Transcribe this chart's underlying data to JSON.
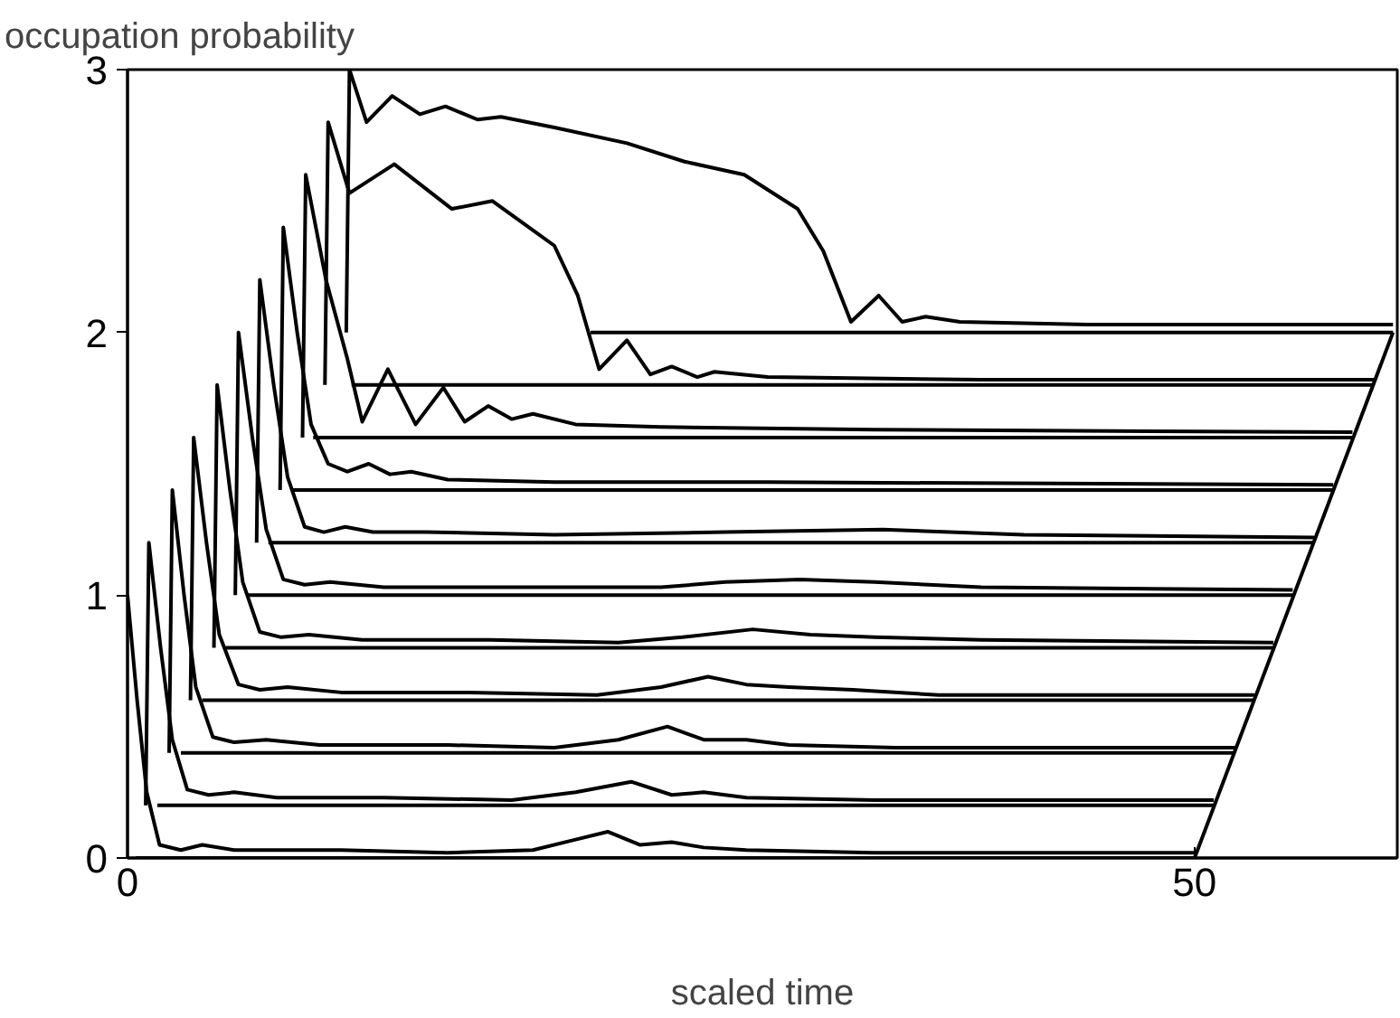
{
  "chart_data": {
    "type": "line",
    "xlabel": "scaled time",
    "ylabel": "occupation probability",
    "xlim": [
      0,
      59.5
    ],
    "ylim": [
      0,
      3
    ],
    "xticks": [
      0,
      50
    ],
    "yticks": [
      0,
      1,
      2,
      3
    ],
    "grid": false,
    "series": [
      {
        "color": "#000000",
        "x": [
          0,
          0.45,
          0.9,
          1.5,
          2.5,
          3.5,
          5,
          10,
          15,
          19,
          21,
          22.5,
          24,
          25.5,
          27,
          29,
          35,
          50
        ],
        "values": [
          1.0,
          0.6,
          0.25,
          0.05,
          0.03,
          0.05,
          0.03,
          0.03,
          0.02,
          0.03,
          0.07,
          0.1,
          0.05,
          0.06,
          0.04,
          0.03,
          0.02,
          0.02
        ]
      },
      {
        "color": "#000000",
        "x": [
          0.85,
          1.0,
          1.55,
          2.1,
          2.8,
          3.8,
          5,
          7,
          12,
          18,
          21,
          23.6,
          25.5,
          27,
          29,
          35,
          50.9
        ],
        "values": [
          0.2,
          1.2,
          0.8,
          0.45,
          0.26,
          0.24,
          0.25,
          0.23,
          0.23,
          0.22,
          0.25,
          0.29,
          0.24,
          0.25,
          0.23,
          0.22,
          0.22
        ]
      },
      {
        "color": "#000000",
        "x": [
          1.95,
          2.1,
          2.65,
          3.2,
          4.0,
          5,
          6.5,
          9,
          15,
          20,
          23,
          25.3,
          27,
          29,
          31,
          36,
          51.9
        ],
        "values": [
          0.4,
          1.4,
          1.0,
          0.65,
          0.46,
          0.44,
          0.45,
          0.43,
          0.43,
          0.42,
          0.45,
          0.5,
          0.45,
          0.45,
          0.43,
          0.42,
          0.42
        ]
      },
      {
        "color": "#000000",
        "x": [
          2.95,
          3.1,
          3.7,
          4.3,
          5.2,
          6.2,
          7.5,
          10,
          16,
          22,
          25,
          27.2,
          29,
          31,
          34,
          38,
          52.8
        ],
        "values": [
          0.6,
          1.6,
          1.2,
          0.85,
          0.66,
          0.64,
          0.65,
          0.63,
          0.63,
          0.62,
          0.65,
          0.69,
          0.66,
          0.65,
          0.64,
          0.62,
          0.62
        ]
      },
      {
        "color": "#000000",
        "x": [
          4.05,
          4.2,
          4.8,
          5.4,
          6.2,
          7.2,
          8.5,
          11,
          17,
          23,
          26,
          29.3,
          32,
          35,
          40,
          53.7
        ],
        "values": [
          0.8,
          1.8,
          1.4,
          1.05,
          0.86,
          0.84,
          0.85,
          0.83,
          0.83,
          0.82,
          0.84,
          0.87,
          0.85,
          0.84,
          0.83,
          0.82
        ]
      },
      {
        "color": "#000000",
        "x": [
          5.05,
          5.2,
          5.85,
          6.5,
          7.3,
          8.3,
          9.5,
          12,
          18,
          25,
          28,
          31.5,
          35,
          40,
          54.6
        ],
        "values": [
          1.0,
          2.0,
          1.6,
          1.25,
          1.06,
          1.04,
          1.05,
          1.03,
          1.03,
          1.03,
          1.05,
          1.06,
          1.05,
          1.03,
          1.02
        ]
      },
      {
        "color": "#000000",
        "x": [
          6.05,
          6.2,
          6.85,
          7.5,
          8.3,
          9.2,
          10.2,
          11.5,
          14,
          20,
          28,
          35.4,
          42,
          55.6
        ],
        "values": [
          1.2,
          2.2,
          1.8,
          1.45,
          1.26,
          1.24,
          1.26,
          1.24,
          1.24,
          1.23,
          1.24,
          1.25,
          1.23,
          1.22
        ]
      },
      {
        "color": "#000000",
        "x": [
          7.15,
          7.3,
          7.95,
          8.6,
          9.4,
          10.3,
          11.3,
          12.3,
          13.3,
          15,
          20,
          30,
          56.5
        ],
        "values": [
          1.4,
          2.4,
          2.0,
          1.65,
          1.5,
          1.47,
          1.5,
          1.46,
          1.47,
          1.44,
          1.43,
          1.43,
          1.42
        ]
      },
      {
        "color": "#000000",
        "x": [
          8.2,
          8.35,
          9.3,
          10.3,
          11.0,
          12.2,
          13.5,
          14.8,
          15.8,
          16.9,
          18,
          19,
          21,
          25,
          35,
          57.4
        ],
        "values": [
          1.6,
          2.6,
          2.2,
          1.9,
          1.66,
          1.86,
          1.65,
          1.79,
          1.66,
          1.72,
          1.67,
          1.69,
          1.65,
          1.64,
          1.63,
          1.62
        ]
      },
      {
        "color": "#000000",
        "x": [
          9.25,
          9.4,
          10.4,
          12.5,
          15.2,
          17.1,
          20,
          21.1,
          22.1,
          23.4,
          24.5,
          25.5,
          26.7,
          27.5,
          30,
          40,
          58.4
        ],
        "values": [
          1.8,
          2.8,
          2.53,
          2.64,
          2.47,
          2.5,
          2.33,
          2.14,
          1.86,
          1.97,
          1.84,
          1.87,
          1.83,
          1.85,
          1.83,
          1.82,
          1.82
        ]
      },
      {
        "color": "#000000",
        "x": [
          10.25,
          10.4,
          11.2,
          12.4,
          13.7,
          14.9,
          16.4,
          17.5,
          20,
          23.4,
          26.1,
          28.9,
          31.4,
          32.6,
          33.9,
          35.2,
          36.3,
          37.4,
          39,
          45,
          59.3
        ],
        "values": [
          2.0,
          3.0,
          2.8,
          2.9,
          2.83,
          2.86,
          2.81,
          2.82,
          2.78,
          2.72,
          2.65,
          2.6,
          2.47,
          2.31,
          2.04,
          2.14,
          2.04,
          2.06,
          2.04,
          2.03,
          2.03
        ]
      },
      {
        "color": "#000000",
        "x": [
          0.4,
          50
        ],
        "values": [
          0,
          0
        ]
      },
      {
        "color": "#000000",
        "x": [
          1.4,
          50.9
        ],
        "values": [
          0.2,
          0.2
        ]
      },
      {
        "color": "#000000",
        "x": [
          2.5,
          51.9
        ],
        "values": [
          0.4,
          0.4
        ]
      },
      {
        "color": "#000000",
        "x": [
          3.5,
          52.8
        ],
        "values": [
          0.6,
          0.6
        ]
      },
      {
        "color": "#000000",
        "x": [
          4.6,
          53.7
        ],
        "values": [
          0.8,
          0.8
        ]
      },
      {
        "color": "#000000",
        "x": [
          5.6,
          54.6
        ],
        "values": [
          1.0,
          1.0
        ]
      },
      {
        "color": "#000000",
        "x": [
          6.6,
          55.6
        ],
        "values": [
          1.2,
          1.2
        ]
      },
      {
        "color": "#000000",
        "x": [
          7.7,
          56.5
        ],
        "values": [
          1.4,
          1.4
        ]
      },
      {
        "color": "#000000",
        "x": [
          8.7,
          57.4
        ],
        "values": [
          1.6,
          1.6
        ]
      },
      {
        "color": "#000000",
        "x": [
          10.5,
          58.4
        ],
        "values": [
          1.8,
          1.8
        ]
      },
      {
        "color": "#000000",
        "x": [
          21.7,
          59.3
        ],
        "values": [
          2.0,
          2.0
        ]
      },
      {
        "color": "#000000",
        "x": [
          50,
          59.3
        ],
        "values": [
          0,
          2.0
        ]
      }
    ]
  }
}
